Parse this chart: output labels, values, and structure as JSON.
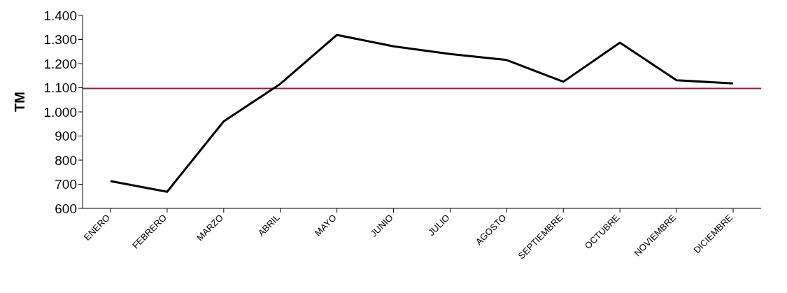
{
  "chart_data": {
    "type": "line",
    "ylabel": "TM",
    "categories": [
      "ENERO",
      "FEBRERO",
      "MARZO",
      "ABRIL",
      "MAYO",
      "JUNIO",
      "JULIO",
      "AGOSTO",
      "SEPTIEMBRE",
      "OCTUBRE",
      "NOVIEMBRE",
      "DICIEMBRE"
    ],
    "series": [
      {
        "color": "#000000",
        "values": [
          713,
          669,
          961,
          1116,
          1319,
          1272,
          1240,
          1215,
          1125,
          1287,
          1131,
          1118
        ]
      }
    ],
    "ylim": [
      600,
      1400
    ],
    "yticks": [
      {
        "value": 600,
        "label": "600"
      },
      {
        "value": 700,
        "label": "700"
      },
      {
        "value": 800,
        "label": "800"
      },
      {
        "value": 900,
        "label": "900"
      },
      {
        "value": 1000,
        "label": "1.000"
      },
      {
        "value": 1100,
        "label": "1.100"
      },
      {
        "value": 1200,
        "label": "1.200"
      },
      {
        "value": 1300,
        "label": "1.300"
      },
      {
        "value": 1400,
        "label": "1.400"
      }
    ],
    "ref_lines": [
      {
        "axis": "y",
        "value": 1097,
        "color": "#8b2040"
      }
    ],
    "grid": false,
    "legend": false,
    "marker": "none",
    "line_style": "solid"
  }
}
